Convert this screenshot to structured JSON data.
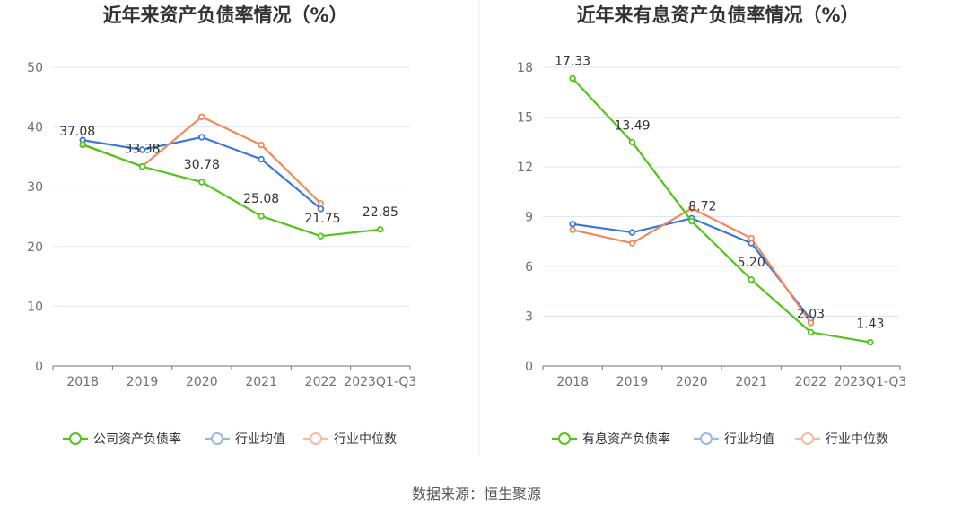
{
  "source_note": "数据来源：恒生聚源",
  "chart_data": [
    {
      "type": "line",
      "title": "近年来资产负债率情况（%）",
      "categories": [
        "2018",
        "2019",
        "2020",
        "2021",
        "2022",
        "2023Q1-Q3"
      ],
      "ylim": [
        0,
        50
      ],
      "yticks": [
        0,
        10,
        20,
        30,
        40,
        50
      ],
      "grid": true,
      "legend_position": "bottom",
      "series": [
        {
          "name": "公司资产负债率",
          "color": "#52c41a",
          "values": [
            37.08,
            33.38,
            30.78,
            25.08,
            21.75,
            22.85
          ],
          "labels": [
            "37.08",
            "33.38",
            "30.78",
            "25.08",
            "21.75",
            "22.85"
          ]
        },
        {
          "name": "行业均值",
          "color": "#3b76d9",
          "values": [
            37.8,
            36.2,
            38.3,
            34.6,
            26.3,
            null
          ]
        },
        {
          "name": "行业中位数",
          "color": "#ee8a5a",
          "values": [
            37.0,
            33.4,
            41.7,
            37.0,
            27.2,
            null
          ]
        }
      ]
    },
    {
      "type": "line",
      "title": "近年来有息资产负债率情况（%）",
      "categories": [
        "2018",
        "2019",
        "2020",
        "2021",
        "2022",
        "2023Q1-Q3"
      ],
      "ylim": [
        0,
        18
      ],
      "yticks": [
        0,
        3,
        6,
        9,
        12,
        15,
        18
      ],
      "grid": true,
      "legend_position": "bottom",
      "series": [
        {
          "name": "有息资产负债率",
          "color": "#52c41a",
          "values": [
            17.33,
            13.49,
            8.72,
            5.2,
            2.03,
            1.43
          ],
          "labels": [
            "17.33",
            "13.49",
            "8.72",
            "5.20",
            "2.03",
            "1.43"
          ]
        },
        {
          "name": "行业均值",
          "color": "#3b76d9",
          "values": [
            8.55,
            8.05,
            8.9,
            7.4,
            2.8,
            null
          ]
        },
        {
          "name": "行业中位数",
          "color": "#ee8a5a",
          "values": [
            8.2,
            7.4,
            9.5,
            7.7,
            2.6,
            null
          ]
        }
      ]
    }
  ]
}
